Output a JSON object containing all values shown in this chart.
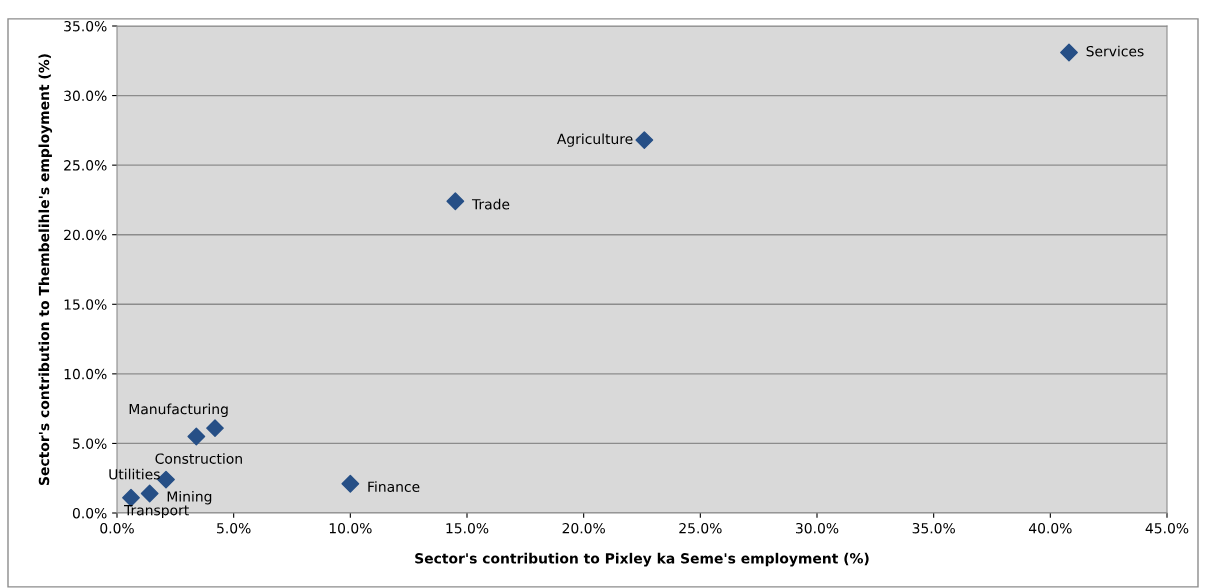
{
  "chart_data": {
    "type": "scatter",
    "xlabel": "Sector's contribution to Pixley ka Seme's employment (%)",
    "ylabel": "Sector's contribution to Thembelihle's employment (%)",
    "series": [
      {
        "color": "#264f86",
        "x": [
          40.8,
          22.6,
          14.5,
          10.0,
          4.2,
          3.4,
          2.1,
          1.4,
          0.6
        ],
        "values": [
          33.1,
          26.8,
          22.4,
          2.1,
          6.1,
          5.5,
          2.4,
          1.4,
          1.1
        ]
      }
    ],
    "annotations": [
      {
        "text": "Services",
        "x": 40.8,
        "y": 33.1
      },
      {
        "text": "Agriculture",
        "x": 22.6,
        "y": 26.8
      },
      {
        "text": "Trade",
        "x": 14.5,
        "y": 22.4
      },
      {
        "text": "Finance",
        "x": 10.0,
        "y": 2.1
      },
      {
        "text": "Manufacturing",
        "x": 4.2,
        "y": 6.1
      },
      {
        "text": "Construction",
        "x": 3.4,
        "y": 5.5
      },
      {
        "text": "Utilities",
        "x": 2.1,
        "y": 2.4
      },
      {
        "text": "Mining",
        "x": 1.4,
        "y": 1.4
      },
      {
        "text": "Transport",
        "x": 0.6,
        "y": 1.1
      }
    ],
    "marker": "diamond",
    "grid": "y",
    "xlim": [
      0,
      45
    ],
    "xticks": [
      {
        "value": 0,
        "label": "0.0%"
      },
      {
        "value": 5,
        "label": "5.0%"
      },
      {
        "value": 10,
        "label": "10.0%"
      },
      {
        "value": 15,
        "label": "15.0%"
      },
      {
        "value": 20,
        "label": "20.0%"
      },
      {
        "value": 25,
        "label": "25.0%"
      },
      {
        "value": 30,
        "label": "30.0%"
      },
      {
        "value": 35,
        "label": "35.0%"
      },
      {
        "value": 40,
        "label": "40.0%"
      },
      {
        "value": 45,
        "label": "45.0%"
      }
    ],
    "ylim": [
      0,
      35
    ],
    "yticks": [
      {
        "value": 0,
        "label": "0.0%"
      },
      {
        "value": 5,
        "label": "5.0%"
      },
      {
        "value": 10,
        "label": "10.0%"
      },
      {
        "value": 15,
        "label": "15.0%"
      },
      {
        "value": 20,
        "label": "20.0%"
      },
      {
        "value": 25,
        "label": "25.0%"
      },
      {
        "value": 30,
        "label": "30.0%"
      },
      {
        "value": 35,
        "label": "35.0%"
      }
    ]
  }
}
